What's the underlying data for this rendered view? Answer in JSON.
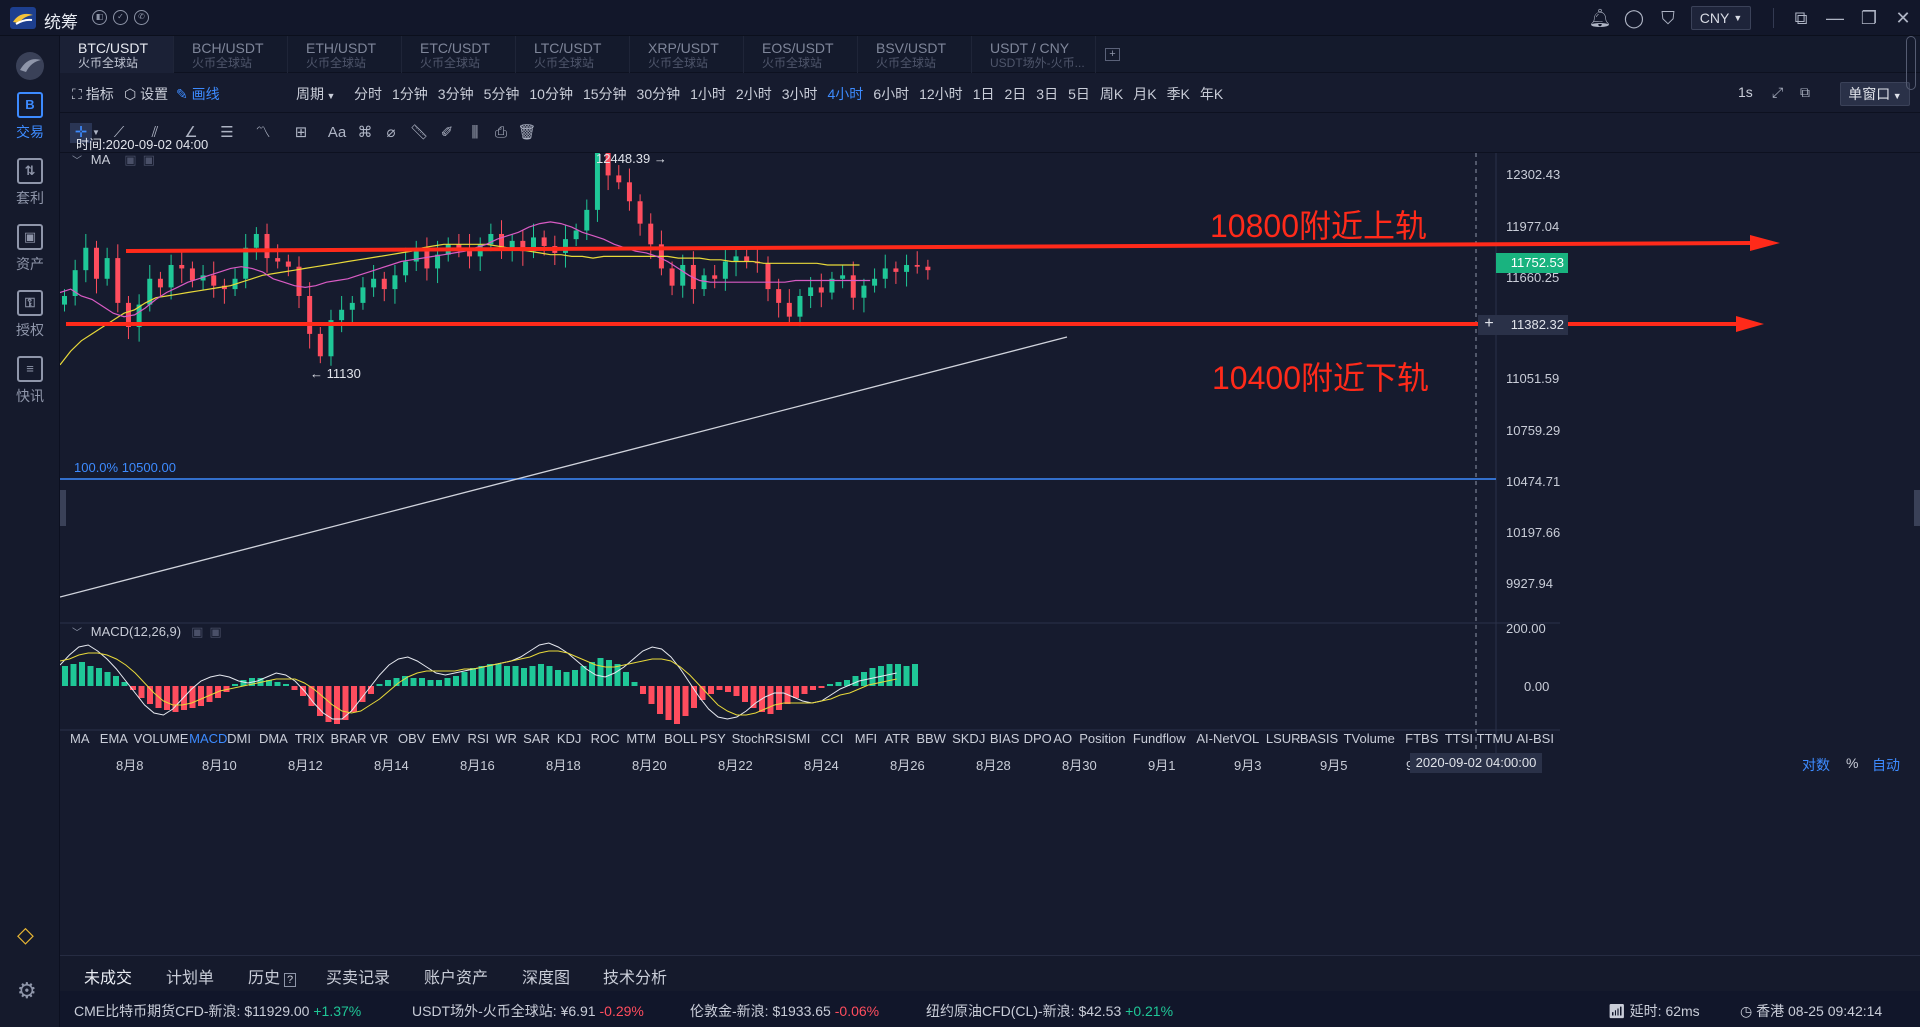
{
  "app": {
    "title": "统筹",
    "currency": "CNY"
  },
  "colors": {
    "background": "#161b2e",
    "accent": "#3d8bff",
    "up": "#1fc797",
    "down": "#ff4d5e",
    "annotation": "#ff2a1a",
    "ma_yellow": "#e8d93a",
    "ma_pink": "#d95bc4"
  },
  "sidebar": {
    "items": [
      {
        "label": "交易",
        "icon": "trade-icon",
        "glyph": "B"
      },
      {
        "label": "套利",
        "icon": "arbitrage-icon",
        "glyph": "⇅"
      },
      {
        "label": "资产",
        "icon": "wallet-icon",
        "glyph": "▣"
      },
      {
        "label": "授权",
        "icon": "key-icon",
        "glyph": "⚿"
      },
      {
        "label": "快讯",
        "icon": "news-icon",
        "glyph": "≡"
      }
    ]
  },
  "tabs": [
    {
      "pair": "BTC/USDT",
      "exchange": "火币全球站"
    },
    {
      "pair": "BCH/USDT",
      "exchange": "火币全球站"
    },
    {
      "pair": "ETH/USDT",
      "exchange": "火币全球站"
    },
    {
      "pair": "ETC/USDT",
      "exchange": "火币全球站"
    },
    {
      "pair": "LTC/USDT",
      "exchange": "火币全球站"
    },
    {
      "pair": "XRP/USDT",
      "exchange": "火币全球站"
    },
    {
      "pair": "EOS/USDT",
      "exchange": "火币全球站"
    },
    {
      "pair": "BSV/USDT",
      "exchange": "火币全球站"
    },
    {
      "pair": "USDT / CNY",
      "exchange": "USDT场外-火币..."
    }
  ],
  "toolbar": {
    "indicator": "指标",
    "settings": "设置",
    "draw": "画线",
    "period_label": "周期",
    "periods": [
      "分时",
      "1分钟",
      "3分钟",
      "5分钟",
      "10分钟",
      "15分钟",
      "30分钟",
      "1小时",
      "2小时",
      "3小时",
      "4小时",
      "6小时",
      "12小时",
      "1日",
      "2日",
      "3日",
      "5日",
      "周K",
      "月K",
      "季K",
      "年K"
    ],
    "active_period": "4小时",
    "interval": "1s",
    "window_mode": "单窗口"
  },
  "chart_data": {
    "type": "candlestick",
    "pair": "BTC/USDT",
    "interval": "4小时",
    "time_label": "时间:2020-09-02 04:00",
    "overlay_label": "MA",
    "y_ticks": [
      "12302.43",
      "11977.04",
      "11660.25",
      "11051.59",
      "10759.29",
      "10474.71",
      "10197.66",
      "9927.94"
    ],
    "current_price": "11752.53",
    "crosshair_price": "11382.32",
    "high_label": "12448.39",
    "low_label": "11130",
    "fib_label": "100.0% 10500.00",
    "annotations": [
      "10800附近上轨",
      "10400附近下轨"
    ],
    "x_ticks": [
      "8月8",
      "8月10",
      "8月12",
      "8月14",
      "8月16",
      "8月18",
      "8月20",
      "8月22",
      "8月24",
      "8月26",
      "8月28",
      "8月30",
      "9月1",
      "9月3",
      "9月5",
      "9月7"
    ],
    "crosshair_time": "2020-09-02 04:00:00",
    "macd": {
      "label": "MACD(12,26,9)",
      "y_ticks": [
        "200.00",
        "0.00"
      ]
    }
  },
  "indicators": [
    "MA",
    "EMA",
    "VOLUME",
    "MACD",
    "DMI",
    "DMA",
    "TRIX",
    "BRAR",
    "VR",
    "OBV",
    "EMV",
    "RSI",
    "WR",
    "SAR",
    "KDJ",
    "ROC",
    "MTM",
    "BOLL",
    "PSY",
    "StochRSI",
    "SMI",
    "CCI",
    "MFI",
    "ATR",
    "BBW",
    "SKDJ",
    "BIAS",
    "DPO",
    "AO",
    "Position",
    "Fundflow",
    "AI-NetVOL",
    "LSUR",
    "BASIS",
    "TVolume",
    "FTBS",
    "TTSI",
    "TTMU",
    "AI-BSI"
  ],
  "active_indicator": "MACD",
  "scale_options": {
    "log": "对数",
    "percent": "%",
    "auto": "自动"
  },
  "bottom_tabs": [
    "未成交",
    "计划单",
    "历史",
    "买卖记录",
    "账户资产",
    "深度图",
    "技术分析"
  ],
  "status": {
    "tickers": [
      {
        "name": "CME比特币期货CFD-新浪:",
        "price": "$11929.00",
        "change": "+1.37%",
        "dir": "up"
      },
      {
        "name": "USDT场外-火币全球站:",
        "price": "¥6.91",
        "change": "-0.29%",
        "dir": "down"
      },
      {
        "name": "伦敦金-新浪:",
        "price": "$1933.65",
        "change": "-0.06%",
        "dir": "down"
      },
      {
        "name": "纽约原油CFD(CL)-新浪:",
        "price": "$42.53",
        "change": "+0.21%",
        "dir": "up"
      }
    ],
    "latency": "延时: 62ms",
    "clock": "香港 08-25 09:42:14"
  }
}
